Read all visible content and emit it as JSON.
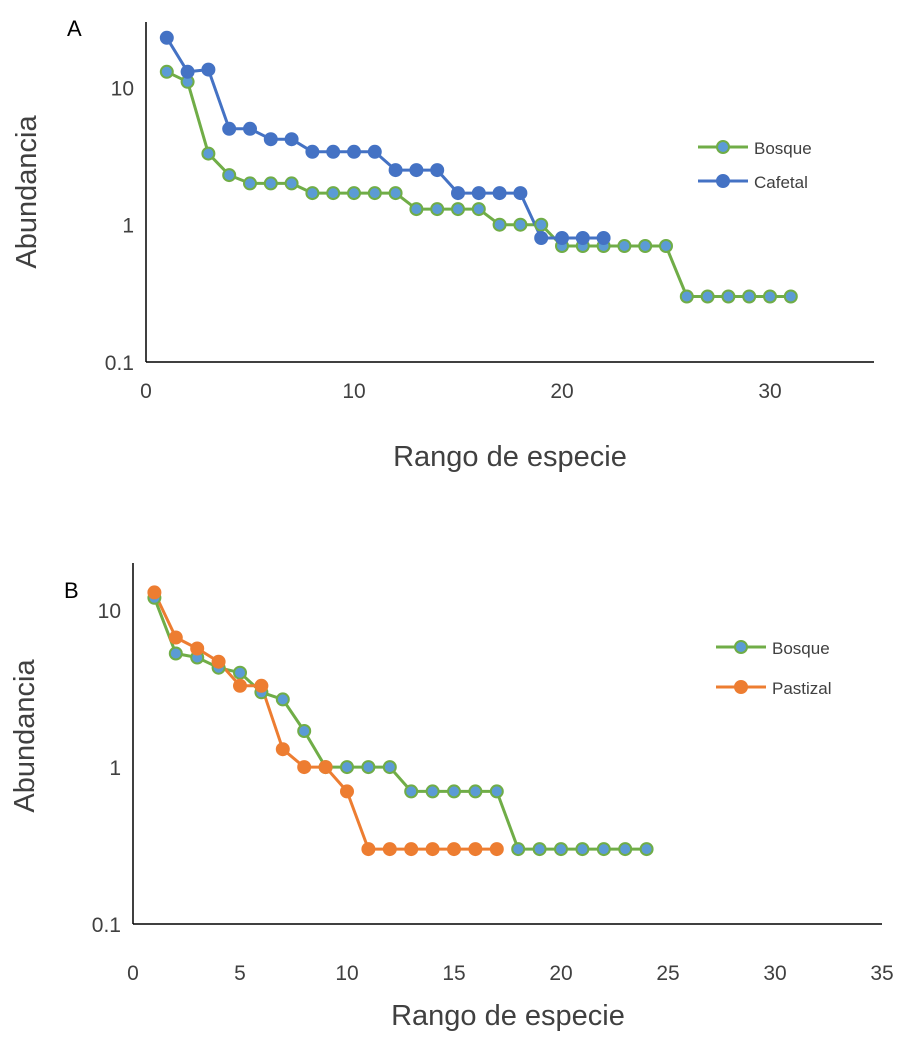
{
  "chart_data": [
    {
      "type": "line",
      "panel_label": "A",
      "xlabel": "Rango de especie",
      "ylabel": "Abundancia",
      "xlim": [
        0,
        35
      ],
      "xticks": [
        0,
        10,
        20,
        30
      ],
      "ylim": [
        0.1,
        30
      ],
      "yscale": "log",
      "yticks": [
        0.1,
        1,
        10
      ],
      "ytick_labels": [
        "0.1",
        "1",
        "10"
      ],
      "grid": false,
      "legend_position": "right",
      "series": [
        {
          "name": "Bosque",
          "color": "#70ad47",
          "marker_fill": "#5b9bd5",
          "x": [
            1,
            2,
            3,
            4,
            5,
            6,
            7,
            8,
            9,
            10,
            11,
            12,
            13,
            14,
            15,
            16,
            17,
            18,
            19,
            20,
            21,
            22,
            23,
            24,
            25,
            26,
            27,
            28,
            29,
            30,
            31
          ],
          "values": [
            13,
            11,
            3.3,
            2.3,
            2,
            2,
            2,
            1.7,
            1.7,
            1.7,
            1.7,
            1.7,
            1.3,
            1.3,
            1.3,
            1.3,
            1,
            1,
            1,
            0.7,
            0.7,
            0.7,
            0.7,
            0.7,
            0.7,
            0.3,
            0.3,
            0.3,
            0.3,
            0.3,
            0.3
          ]
        },
        {
          "name": "Cafetal",
          "color": "#4472c4",
          "marker_fill": "#4472c4",
          "x": [
            1,
            2,
            3,
            4,
            5,
            6,
            7,
            8,
            9,
            10,
            11,
            12,
            13,
            14,
            15,
            16,
            17,
            18,
            19,
            20,
            21,
            22
          ],
          "values": [
            23,
            13,
            13.5,
            5,
            5,
            4.2,
            4.2,
            3.4,
            3.4,
            3.4,
            3.4,
            2.5,
            2.5,
            2.5,
            1.7,
            1.7,
            1.7,
            1.7,
            0.8,
            0.8,
            0.8,
            0.8
          ]
        }
      ]
    },
    {
      "type": "line",
      "panel_label": "B",
      "xlabel": "Rango de especie",
      "ylabel": "Abundancia",
      "xlim": [
        0,
        35
      ],
      "xticks": [
        0,
        5,
        10,
        15,
        20,
        25,
        30,
        35
      ],
      "ylim": [
        0.1,
        20
      ],
      "yscale": "log",
      "yticks": [
        0.1,
        1,
        10
      ],
      "ytick_labels": [
        "0.1",
        "1",
        "10"
      ],
      "grid": false,
      "legend_position": "right",
      "series": [
        {
          "name": "Bosque",
          "color": "#70ad47",
          "marker_fill": "#5b9bd5",
          "x": [
            1,
            2,
            3,
            4,
            5,
            6,
            7,
            8,
            9,
            10,
            11,
            12,
            13,
            14,
            15,
            16,
            17,
            18,
            19,
            20,
            21,
            22,
            23,
            24
          ],
          "values": [
            12,
            5.3,
            5,
            4.3,
            4,
            3,
            2.7,
            1.7,
            1,
            1,
            1,
            1,
            0.7,
            0.7,
            0.7,
            0.7,
            0.7,
            0.3,
            0.3,
            0.3,
            0.3,
            0.3,
            0.3,
            0.3
          ]
        },
        {
          "name": "Pastizal",
          "color": "#ed7d31",
          "marker_fill": "#ed7d31",
          "x": [
            1,
            2,
            3,
            4,
            5,
            6,
            7,
            8,
            9,
            10,
            11,
            12,
            13,
            14,
            15,
            16,
            17
          ],
          "values": [
            13,
            6.7,
            5.7,
            4.7,
            3.3,
            3.3,
            1.3,
            1,
            1,
            0.7,
            0.3,
            0.3,
            0.3,
            0.3,
            0.3,
            0.3,
            0.3
          ]
        }
      ]
    }
  ]
}
